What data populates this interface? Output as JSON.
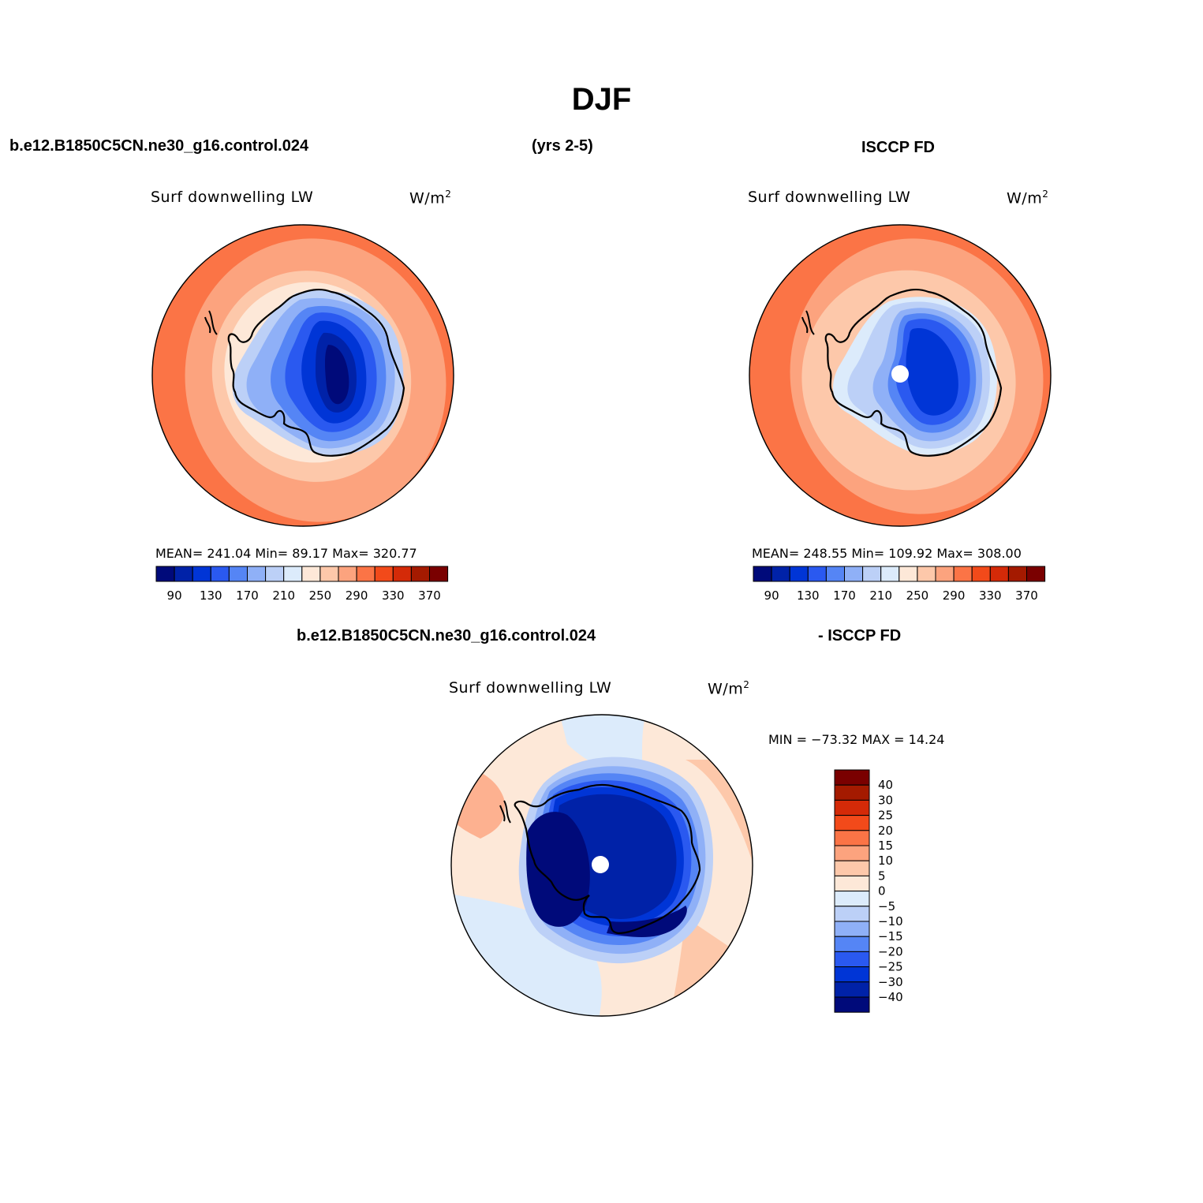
{
  "title": "DJF",
  "header": {
    "case_name": "b.e12.B1850C5CN.ne30_g16.control.024",
    "years": "(yrs 2-5)",
    "obs_name": "ISCCP FD"
  },
  "diff_header": {
    "case_name": "b.e12.B1850C5CN.ne30_g16.control.024",
    "obs_suffix": "- ISCCP FD"
  },
  "panels": {
    "model": {
      "title": "Surf downwelling LW",
      "units": "W/m",
      "units_exp": "2",
      "stats": "MEAN= 241.04   Min=   89.17   Max= 320.77"
    },
    "obs": {
      "title": "Surf downwelling LW",
      "units": "W/m",
      "units_exp": "2",
      "stats": "MEAN= 248.55   Min= 109.92   Max= 308.00"
    },
    "diff": {
      "title": "Surf downwelling LW",
      "units": "W/m",
      "units_exp": "2",
      "stats": "MIN = −73.32 MAX =   14.24"
    }
  },
  "colorbar_main": {
    "colors": [
      "#000a7a",
      "#0022a8",
      "#0035d6",
      "#2a59f0",
      "#5585f5",
      "#8fb0f7",
      "#bcd0f7",
      "#dcebfb",
      "#fde8d8",
      "#fdc8aa",
      "#fca37e",
      "#fb7446",
      "#f24a1a",
      "#d42a08",
      "#a41a00",
      "#7a0000"
    ],
    "labels": [
      "90",
      "130",
      "170",
      "210",
      "250",
      "290",
      "330",
      "370"
    ]
  },
  "colorbar_diff": {
    "colors_top_to_bottom": [
      "#7a0000",
      "#a41a00",
      "#d42a08",
      "#f24a1a",
      "#fb7446",
      "#fca37e",
      "#fdc8aa",
      "#fde8d8",
      "#dcebfb",
      "#bcd0f7",
      "#8fb0f7",
      "#5585f5",
      "#2a59f0",
      "#0035d6",
      "#0022a8",
      "#000a7a"
    ],
    "labels": [
      "40",
      "30",
      "25",
      "20",
      "15",
      "10",
      "5",
      "0",
      "−5",
      "−10",
      "−15",
      "−20",
      "−25",
      "−30",
      "−40"
    ]
  }
}
